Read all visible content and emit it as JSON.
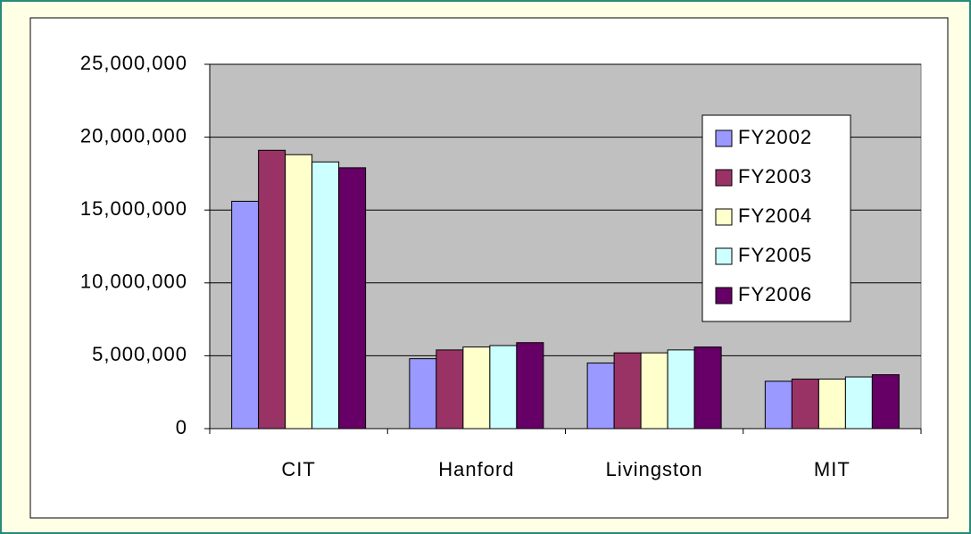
{
  "chart_data": {
    "type": "bar",
    "categories": [
      "CIT",
      "Hanford",
      "Livingston",
      "MIT"
    ],
    "series": [
      {
        "name": "FY2002",
        "color": "#9999ff",
        "values": [
          15600000,
          4800000,
          4500000,
          3250000
        ]
      },
      {
        "name": "FY2003",
        "color": "#993366",
        "values": [
          19100000,
          5400000,
          5200000,
          3400000
        ]
      },
      {
        "name": "FY2004",
        "color": "#ffffcc",
        "values": [
          18800000,
          5600000,
          5200000,
          3400000
        ]
      },
      {
        "name": "FY2005",
        "color": "#ccffff",
        "values": [
          18300000,
          5700000,
          5400000,
          3550000
        ]
      },
      {
        "name": "FY2006",
        "color": "#660066",
        "values": [
          17900000,
          5900000,
          5600000,
          3700000
        ]
      }
    ],
    "ylim": [
      0,
      25000000
    ],
    "yticks": [
      0,
      {
        "value": 5000000,
        "label": "5,000,000"
      },
      {
        "value": 10000000,
        "label": "10,000,000"
      },
      {
        "value": 15000000,
        "label": "15,000,000"
      },
      {
        "value": 20000000,
        "label": "20,000,000"
      },
      {
        "value": 25000000,
        "label": "25,000,000"
      }
    ],
    "grid": true,
    "legend": "upper right"
  }
}
